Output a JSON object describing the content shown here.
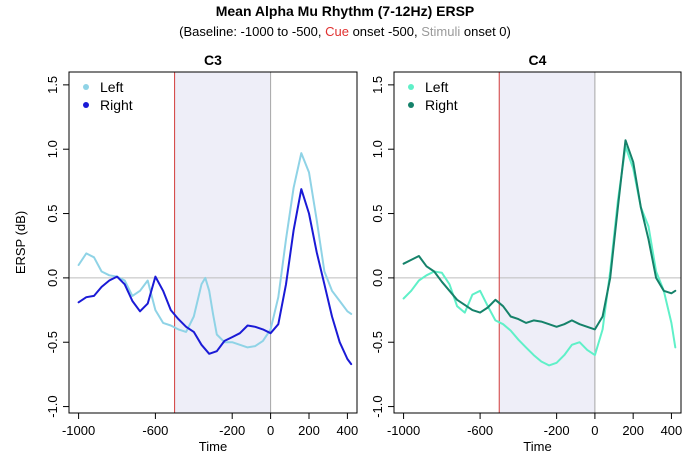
{
  "title": "Mean Alpha Mu Rhythm (7-12Hz) ERSP",
  "subtitle": {
    "prefix": "(Baseline: -1000 to -500, ",
    "cue": "Cue",
    "mid": " onset -500, ",
    "stimuli": "Stimuli",
    "suffix": " onset 0)"
  },
  "chart_data": [
    {
      "type": "line",
      "title": "C3",
      "xlabel": "Time",
      "ylabel": "ERSP (dB)",
      "xlim": [
        -1050,
        450
      ],
      "ylim": [
        -1.05,
        1.6
      ],
      "xticks": [
        -1000,
        -600,
        -200,
        0,
        200,
        400
      ],
      "xtick_labels": [
        "-1000",
        "-600",
        "-200",
        "0",
        "200",
        "400"
      ],
      "yticks": [
        -1.0,
        -0.5,
        0.0,
        0.5,
        1.0,
        1.5
      ],
      "ytick_labels": [
        "-1.0",
        "-0.5",
        "0.0",
        "0.5",
        "1.0",
        "1.5"
      ],
      "shaded_region": [
        -500,
        0
      ],
      "cue_line": -500,
      "stimulus_line": 0,
      "zero_line": 0,
      "legend_position": "top-left",
      "colors": {
        "Left": "#8fd3e6",
        "Right": "#1a1ad6",
        "cue_line": "#d23a3a",
        "stimulus_line": "#a6a6a6",
        "zero_line": "#bdbdbd",
        "shade": "#eeeef8"
      },
      "series": [
        {
          "name": "Left",
          "x": [
            -1000,
            -960,
            -920,
            -880,
            -840,
            -800,
            -760,
            -720,
            -680,
            -640,
            -600,
            -560,
            -520,
            -480,
            -440,
            -400,
            -360,
            -340,
            -320,
            -300,
            -280,
            -240,
            -200,
            -160,
            -120,
            -80,
            -40,
            0,
            40,
            80,
            120,
            160,
            200,
            240,
            280,
            320,
            360,
            400,
            420
          ],
          "y": [
            0.1,
            0.19,
            0.16,
            0.05,
            0.02,
            0.01,
            -0.02,
            -0.14,
            -0.1,
            -0.02,
            -0.25,
            -0.35,
            -0.37,
            -0.4,
            -0.42,
            -0.3,
            -0.05,
            0.0,
            -0.1,
            -0.28,
            -0.44,
            -0.5,
            -0.5,
            -0.52,
            -0.54,
            -0.53,
            -0.49,
            -0.4,
            -0.15,
            0.3,
            0.7,
            0.97,
            0.82,
            0.45,
            0.05,
            -0.1,
            -0.18,
            -0.26,
            -0.28
          ]
        },
        {
          "name": "Right",
          "x": [
            -1000,
            -960,
            -920,
            -880,
            -840,
            -800,
            -760,
            -720,
            -680,
            -640,
            -600,
            -560,
            -520,
            -480,
            -440,
            -400,
            -360,
            -320,
            -280,
            -240,
            -200,
            -160,
            -120,
            -80,
            -40,
            0,
            40,
            80,
            120,
            160,
            200,
            240,
            280,
            320,
            360,
            400,
            420
          ],
          "y": [
            -0.19,
            -0.15,
            -0.14,
            -0.07,
            -0.02,
            0.01,
            -0.05,
            -0.18,
            -0.26,
            -0.2,
            0.01,
            -0.1,
            -0.25,
            -0.32,
            -0.38,
            -0.42,
            -0.52,
            -0.59,
            -0.57,
            -0.49,
            -0.46,
            -0.43,
            -0.37,
            -0.38,
            -0.4,
            -0.43,
            -0.36,
            -0.05,
            0.37,
            0.69,
            0.5,
            0.2,
            -0.05,
            -0.3,
            -0.5,
            -0.63,
            -0.67
          ]
        }
      ]
    },
    {
      "type": "line",
      "title": "C4",
      "xlabel": "Time",
      "ylabel": "",
      "xlim": [
        -1050,
        450
      ],
      "ylim": [
        -1.05,
        1.6
      ],
      "xticks": [
        -1000,
        -600,
        -200,
        0,
        200,
        400
      ],
      "xtick_labels": [
        "-1000",
        "-600",
        "-200",
        "0",
        "200",
        "400"
      ],
      "yticks": [
        -1.0,
        -0.5,
        0.0,
        0.5,
        1.0,
        1.5
      ],
      "ytick_labels": [
        "-1.0",
        "-0.5",
        "0.0",
        "0.5",
        "1.0",
        "1.5"
      ],
      "shaded_region": [
        -500,
        0
      ],
      "cue_line": -500,
      "stimulus_line": 0,
      "zero_line": 0,
      "legend_position": "top-left",
      "colors": {
        "Left": "#5ff0c8",
        "Right": "#15826a",
        "cue_line": "#d23a3a",
        "stimulus_line": "#a6a6a6",
        "zero_line": "#bdbdbd",
        "shade": "#eeeef8"
      },
      "series": [
        {
          "name": "Left",
          "x": [
            -1000,
            -960,
            -920,
            -880,
            -840,
            -800,
            -760,
            -720,
            -680,
            -640,
            -600,
            -560,
            -520,
            -480,
            -440,
            -400,
            -360,
            -320,
            -280,
            -240,
            -200,
            -160,
            -120,
            -80,
            -40,
            0,
            40,
            80,
            120,
            160,
            200,
            240,
            280,
            320,
            360,
            400,
            420
          ],
          "y": [
            -0.16,
            -0.1,
            -0.02,
            0.02,
            0.05,
            0.04,
            -0.05,
            -0.22,
            -0.27,
            -0.13,
            -0.1,
            -0.22,
            -0.33,
            -0.36,
            -0.41,
            -0.48,
            -0.54,
            -0.6,
            -0.65,
            -0.68,
            -0.66,
            -0.6,
            -0.52,
            -0.5,
            -0.56,
            -0.6,
            -0.4,
            0.05,
            0.6,
            1.02,
            0.85,
            0.55,
            0.4,
            0.05,
            -0.1,
            -0.35,
            -0.54
          ]
        },
        {
          "name": "Right",
          "x": [
            -1000,
            -960,
            -920,
            -880,
            -840,
            -800,
            -760,
            -720,
            -680,
            -640,
            -600,
            -560,
            -520,
            -480,
            -440,
            -400,
            -360,
            -320,
            -280,
            -240,
            -200,
            -160,
            -120,
            -80,
            -40,
            0,
            40,
            80,
            120,
            160,
            200,
            240,
            280,
            320,
            360,
            400,
            420
          ],
          "y": [
            0.11,
            0.14,
            0.17,
            0.09,
            0.05,
            -0.03,
            -0.1,
            -0.17,
            -0.21,
            -0.25,
            -0.27,
            -0.23,
            -0.17,
            -0.22,
            -0.3,
            -0.32,
            -0.35,
            -0.33,
            -0.34,
            -0.36,
            -0.38,
            -0.36,
            -0.33,
            -0.36,
            -0.38,
            -0.4,
            -0.3,
            0.0,
            0.55,
            1.07,
            0.9,
            0.55,
            0.3,
            0.0,
            -0.1,
            -0.12,
            -0.1
          ]
        }
      ]
    }
  ]
}
